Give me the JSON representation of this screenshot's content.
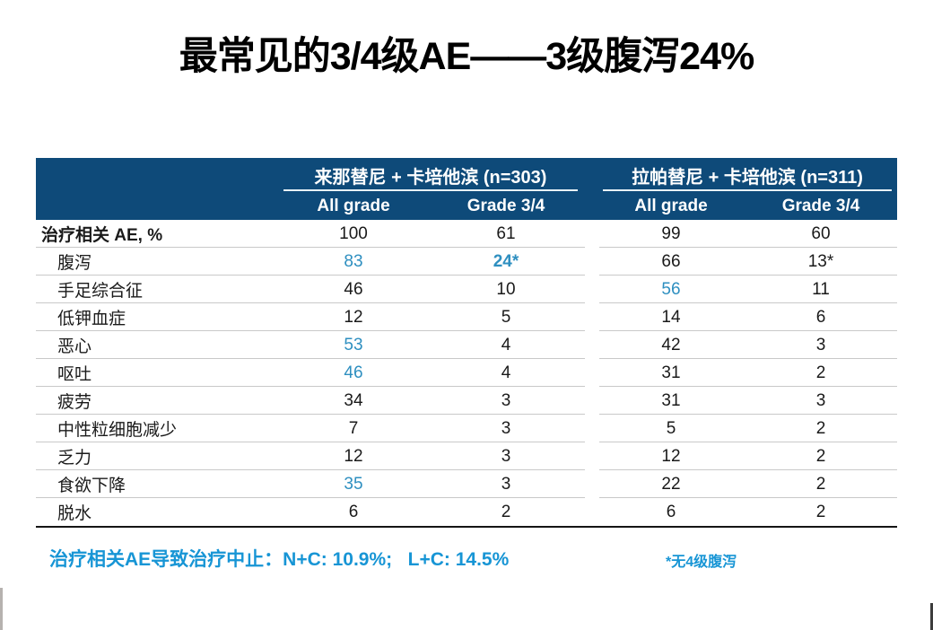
{
  "title": "最常见的3/4级AE——3级腹泻24%",
  "colors": {
    "header_bg": "#0e4a79",
    "highlight_blue": "#2e8fc0",
    "footnote_blue": "#1795d5"
  },
  "table": {
    "groups": [
      {
        "label": "来那替尼 + 卡培他滨 (n=303)"
      },
      {
        "label": "拉帕替尼 + 卡培他滨 (n=311)"
      }
    ],
    "subheaders": [
      "All grade",
      "Grade 3/4",
      "All grade",
      "Grade 3/4"
    ],
    "rows": [
      {
        "label": "治疗相关 AE, %",
        "header_row": true,
        "cells": [
          {
            "v": "100"
          },
          {
            "v": "61"
          },
          {
            "v": "99"
          },
          {
            "v": "60"
          }
        ]
      },
      {
        "label": "腹泻",
        "cells": [
          {
            "v": "83",
            "blue": true
          },
          {
            "v": "24*",
            "blue": true,
            "bold": true
          },
          {
            "v": "66"
          },
          {
            "v": "13*"
          }
        ]
      },
      {
        "label": "手足综合征",
        "cells": [
          {
            "v": "46"
          },
          {
            "v": "10"
          },
          {
            "v": "56",
            "blue": true
          },
          {
            "v": "11"
          }
        ]
      },
      {
        "label": "低钾血症",
        "cells": [
          {
            "v": "12"
          },
          {
            "v": "5"
          },
          {
            "v": "14"
          },
          {
            "v": "6"
          }
        ]
      },
      {
        "label": "恶心",
        "cells": [
          {
            "v": "53",
            "blue": true
          },
          {
            "v": "4"
          },
          {
            "v": "42"
          },
          {
            "v": "3"
          }
        ]
      },
      {
        "label": "呕吐",
        "cells": [
          {
            "v": "46",
            "blue": true
          },
          {
            "v": "4"
          },
          {
            "v": "31"
          },
          {
            "v": "2"
          }
        ]
      },
      {
        "label": "疲劳",
        "cells": [
          {
            "v": "34"
          },
          {
            "v": "3"
          },
          {
            "v": "31"
          },
          {
            "v": "3"
          }
        ]
      },
      {
        "label": "中性粒细胞减少",
        "cells": [
          {
            "v": "7"
          },
          {
            "v": "3"
          },
          {
            "v": "5"
          },
          {
            "v": "2"
          }
        ]
      },
      {
        "label": "乏力",
        "cells": [
          {
            "v": "12"
          },
          {
            "v": "3"
          },
          {
            "v": "12"
          },
          {
            "v": "2"
          }
        ]
      },
      {
        "label": "食欲下降",
        "cells": [
          {
            "v": "35",
            "blue": true
          },
          {
            "v": "3"
          },
          {
            "v": "22"
          },
          {
            "v": "2"
          }
        ]
      },
      {
        "label": "脱水",
        "cells": [
          {
            "v": "6"
          },
          {
            "v": "2"
          },
          {
            "v": "6"
          },
          {
            "v": "2"
          }
        ]
      }
    ]
  },
  "footnotes": {
    "left": "治疗相关AE导致治疗中止：N+C: 10.9%;   L+C: 14.5%",
    "right": "*无4级腹泻"
  }
}
